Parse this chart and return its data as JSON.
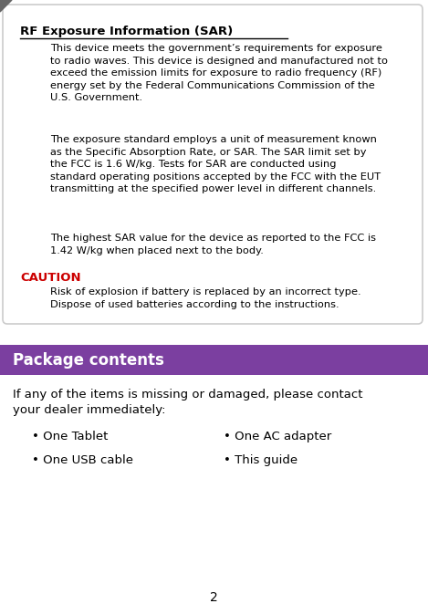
{
  "bg_color": "#ffffff",
  "page_number": "2",
  "box_border": "#cccccc",
  "purple_bg": "#7b3fa0",
  "purple_text": "#ffffff",
  "red_color": "#cc0000",
  "black_color": "#000000",
  "title_text": "RF Exposure Information (SAR)",
  "para1": "This device meets the government’s requirements for exposure\nto radio waves. This device is designed and manufactured not to\nexceed the emission limits for exposure to radio frequency (RF)\nenergy set by the Federal Communications Commission of the\nU.S. Government.",
  "para2": "The exposure standard employs a unit of measurement known\nas the Specific Absorption Rate, or SAR. The SAR limit set by\nthe FCC is 1.6 W/kg. Tests for SAR are conducted using\nstandard operating positions accepted by the FCC with the EUT\ntransmitting at the specified power level in different channels.",
  "para3": "The highest SAR value for the device as reported to the FCC is\n1.42 W/kg when placed next to the body.",
  "caution_label": "CAUTION",
  "caution_text": "Risk of explosion if battery is replaced by an incorrect type.\nDispose of used batteries according to the instructions.",
  "section2_title": "Package contents",
  "section2_intro": "If any of the items is missing or damaged, please contact\nyour dealer immediately:",
  "bullet1_left": "• One Tablet",
  "bullet2_left": "• One USB cable",
  "bullet1_right": "• One AC adapter",
  "bullet2_right": "• This guide"
}
